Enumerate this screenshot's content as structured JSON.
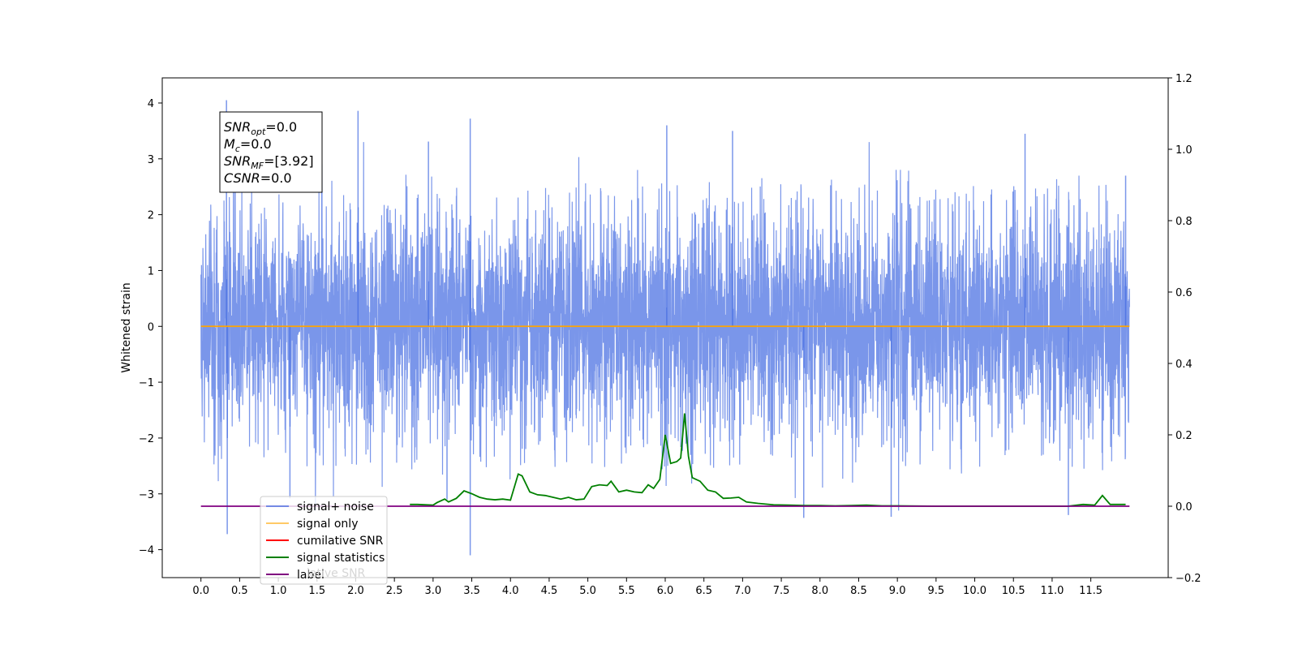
{
  "chart_data": {
    "type": "line",
    "title": "",
    "xlabel": "",
    "ylabel": "Whitened strain",
    "ylabel_right": "",
    "xlim": [
      -0.5,
      12.5
    ],
    "ylim": [
      -4.5,
      4.45
    ],
    "ylim_right": [
      -0.2,
      1.2
    ],
    "x_ticks": [
      0.0,
      0.5,
      1.0,
      1.5,
      2.0,
      2.5,
      3.0,
      3.5,
      4.0,
      4.5,
      5.0,
      5.5,
      6.0,
      6.5,
      7.0,
      7.5,
      8.0,
      8.5,
      9.0,
      9.5,
      10.0,
      10.5,
      11.0,
      11.5
    ],
    "y_ticks": [
      -4,
      -3,
      -2,
      -1,
      0,
      1,
      2,
      3,
      4
    ],
    "y_ticks_right": [
      -0.2,
      0.0,
      0.2,
      0.4,
      0.6,
      0.8,
      1.0,
      1.2
    ],
    "grid": false,
    "legend_position": "lower-left",
    "legend": [
      {
        "label": "signal+ noise",
        "color": "#4169e1"
      },
      {
        "label": "signal only",
        "color": "#ffa500"
      },
      {
        "label": "cumilative SNR",
        "color": "#ff0000"
      },
      {
        "label": "signal statistics",
        "color": "#008000"
      },
      {
        "label": "label",
        "color": "#800080"
      }
    ],
    "overlapped_legend_text": "lative SNR",
    "info_box": {
      "lines": [
        {
          "symbol": "SNR",
          "sub": "opt",
          "value": "=0.0"
        },
        {
          "symbol": "M",
          "sub": "c",
          "value": "=0.0"
        },
        {
          "symbol": "SNR",
          "sub": "MF",
          "value": "=[3.92]"
        },
        {
          "symbol": "CSNR",
          "sub": "",
          "value": "=0.0"
        }
      ]
    },
    "series": [
      {
        "name": "signal+ noise",
        "axis": "left",
        "color": "#4169e1",
        "style": "dense-noise",
        "x_range": [
          0.0,
          12.0
        ],
        "typical_band": [
          -2.2,
          2.3
        ],
        "peaks": [
          {
            "x": 0.33,
            "y": 4.05
          },
          {
            "x": 0.34,
            "y": -3.72
          },
          {
            "x": 1.15,
            "y": -3.08
          },
          {
            "x": 2.03,
            "y": 3.86
          },
          {
            "x": 2.94,
            "y": 3.31
          },
          {
            "x": 3.18,
            "y": -3.1
          },
          {
            "x": 3.48,
            "y": 3.72
          },
          {
            "x": 3.48,
            "y": -4.1
          },
          {
            "x": 6.02,
            "y": 3.6
          },
          {
            "x": 6.87,
            "y": 3.5
          },
          {
            "x": 7.79,
            "y": -3.43
          },
          {
            "x": 8.92,
            "y": -3.41
          },
          {
            "x": 10.65,
            "y": 3.45
          },
          {
            "x": 11.21,
            "y": -3.38
          },
          {
            "x": 11.95,
            "y": 2.7
          }
        ]
      },
      {
        "name": "signal only",
        "axis": "left",
        "color": "#ffa500",
        "x": [
          0.0,
          12.0
        ],
        "y": [
          0.0,
          0.0
        ]
      },
      {
        "name": "signal statistics",
        "axis": "right",
        "color": "#008000",
        "x": [
          2.7,
          2.8,
          3.0,
          3.05,
          3.15,
          3.2,
          3.3,
          3.4,
          3.5,
          3.6,
          3.7,
          3.8,
          3.9,
          4.0,
          4.1,
          4.15,
          4.25,
          4.35,
          4.45,
          4.55,
          4.65,
          4.75,
          4.85,
          4.95,
          5.05,
          5.15,
          5.25,
          5.3,
          5.4,
          5.5,
          5.6,
          5.7,
          5.78,
          5.85,
          5.93,
          6.0,
          6.07,
          6.15,
          6.2,
          6.25,
          6.3,
          6.35,
          6.45,
          6.55,
          6.65,
          6.75,
          6.85,
          6.95,
          7.05,
          7.2,
          7.4,
          7.6,
          7.8,
          8.0,
          8.2,
          8.4,
          8.6,
          8.8,
          9.0,
          9.5,
          10.0,
          10.5,
          11.0,
          11.2,
          11.4,
          11.55,
          11.65,
          11.75,
          11.95
        ],
        "y": [
          0.005,
          0.005,
          0.003,
          0.01,
          0.02,
          0.012,
          0.022,
          0.043,
          0.035,
          0.025,
          0.02,
          0.018,
          0.02,
          0.017,
          0.09,
          0.085,
          0.04,
          0.032,
          0.03,
          0.025,
          0.02,
          0.025,
          0.018,
          0.02,
          0.055,
          0.06,
          0.058,
          0.07,
          0.04,
          0.045,
          0.04,
          0.038,
          0.06,
          0.05,
          0.075,
          0.2,
          0.12,
          0.125,
          0.135,
          0.26,
          0.14,
          0.08,
          0.07,
          0.045,
          0.04,
          0.022,
          0.023,
          0.025,
          0.012,
          0.008,
          0.004,
          0.003,
          0.002,
          0.002,
          0.001,
          0.002,
          0.003,
          0.001,
          0.001,
          0.0,
          0.0,
          0.0,
          0.0,
          0.0,
          0.005,
          0.003,
          0.03,
          0.005,
          0.005
        ]
      },
      {
        "name": "label",
        "axis": "right",
        "color": "#800080",
        "x": [
          0.0,
          12.0
        ],
        "y": [
          0.0,
          0.0
        ]
      }
    ]
  }
}
